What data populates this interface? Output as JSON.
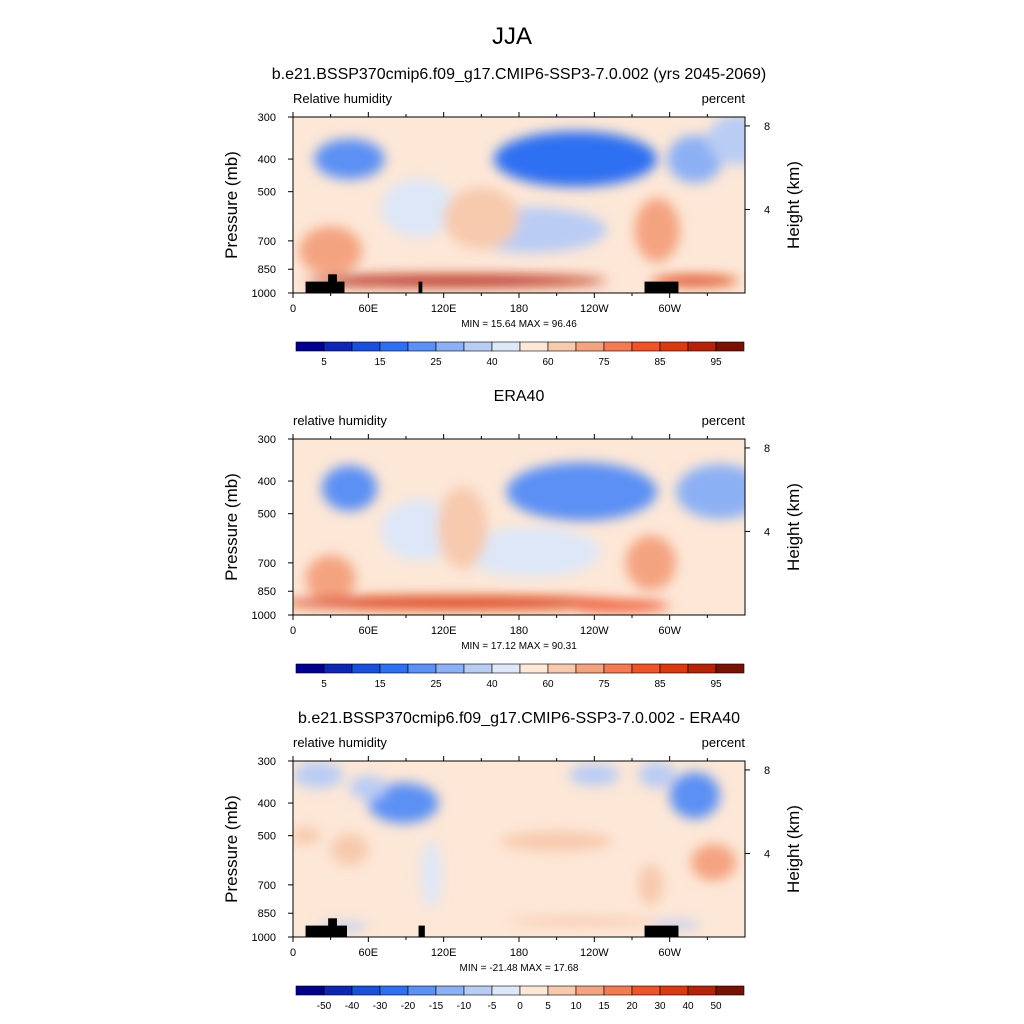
{
  "figure": {
    "title": "JJA",
    "subtitle": "b.e21.BSSP370cmip6.f09_g17.CMIP6-SSP3-7.0.002 (yrs 2045-2069)"
  },
  "chart_data": [
    {
      "type": "heatmap",
      "panel": "model",
      "title": "",
      "left_label": "Relative humidity",
      "right_label": "percent",
      "ylabel": "Pressure (mb)",
      "ylabel_right": "Height (km)",
      "xlabel": "",
      "x_ticks": [
        "0",
        "60E",
        "120E",
        "180",
        "120W",
        "60W"
      ],
      "x_tick_lon": [
        0,
        60,
        120,
        180,
        240,
        300
      ],
      "xlim": [
        0,
        360
      ],
      "y_ticks": [
        300,
        400,
        500,
        700,
        850,
        1000
      ],
      "ylim": [
        1000,
        300
      ],
      "right_ticks": [
        8,
        4
      ],
      "stats": "MIN =  15.64  MAX =  96.46",
      "colorbar": {
        "levels": [
          5,
          10,
          15,
          20,
          25,
          30,
          40,
          50,
          60,
          70,
          75,
          80,
          85,
          90,
          95
        ],
        "labels": [
          "5",
          "15",
          "25",
          "40",
          "60",
          "75",
          "85",
          "95"
        ],
        "colors": [
          "#00008c",
          "#0d26b4",
          "#1a4fdb",
          "#2f70f2",
          "#5b90f4",
          "#8cb0f4",
          "#b9ccf4",
          "#dde7f8",
          "#fde7d7",
          "#f7c9ad",
          "#f4a380",
          "#f27b54",
          "#ee5329",
          "#da3a10",
          "#b4230a",
          "#781204"
        ]
      },
      "features": [
        {
          "lon": 45,
          "p": 400,
          "value": 20,
          "dlon": 28,
          "dp": 110
        },
        {
          "lon": 225,
          "p": 400,
          "value": 18,
          "dlon": 65,
          "dp": 150
        },
        {
          "lon": 320,
          "p": 400,
          "value": 25,
          "dlon": 22,
          "dp": 130
        },
        {
          "lon": 355,
          "p": 350,
          "value": 38,
          "dlon": 25,
          "dp": 150
        },
        {
          "lon": 100,
          "p": 560,
          "value": 45,
          "dlon": 30,
          "dp": 220
        },
        {
          "lon": 190,
          "p": 650,
          "value": 38,
          "dlon": 60,
          "dp": 200
        },
        {
          "lon": 150,
          "p": 600,
          "value": 65,
          "dlon": 30,
          "dp": 250
        },
        {
          "lon": 30,
          "p": 750,
          "value": 72,
          "dlon": 25,
          "dp": 250
        },
        {
          "lon": 290,
          "p": 650,
          "value": 70,
          "dlon": 18,
          "dp": 280
        },
        {
          "lon": 130,
          "p": 920,
          "value": 92,
          "dlon": 120,
          "dp": 70
        },
        {
          "lon": 60,
          "p": 920,
          "value": 90,
          "dlon": 40,
          "dp": 60
        },
        {
          "lon": 320,
          "p": 920,
          "value": 88,
          "dlon": 35,
          "dp": 60
        }
      ],
      "topography": [
        {
          "lon1": 10,
          "lon2": 41,
          "p_top": 925
        },
        {
          "lon1": 28,
          "lon2": 35,
          "p_top": 880
        },
        {
          "lon1": 100,
          "lon2": 103,
          "p_top": 925
        },
        {
          "lon1": 280,
          "lon2": 307,
          "p_top": 925
        }
      ]
    },
    {
      "type": "heatmap",
      "panel": "observations",
      "title": "ERA40",
      "left_label": "relative humidity",
      "right_label": "percent",
      "ylabel": "Pressure (mb)",
      "ylabel_right": "Height (km)",
      "xlabel": "",
      "x_ticks": [
        "0",
        "60E",
        "120E",
        "180",
        "120W",
        "60W"
      ],
      "x_tick_lon": [
        0,
        60,
        120,
        180,
        240,
        300
      ],
      "xlim": [
        0,
        360
      ],
      "y_ticks": [
        300,
        400,
        500,
        700,
        850,
        1000
      ],
      "ylim": [
        1000,
        300
      ],
      "right_ticks": [
        8,
        4
      ],
      "stats": "MIN =  17.12  MAX =  90.31",
      "colorbar": {
        "levels": [
          5,
          10,
          15,
          20,
          25,
          30,
          40,
          50,
          60,
          70,
          75,
          80,
          85,
          90,
          95
        ],
        "labels": [
          "5",
          "15",
          "25",
          "40",
          "60",
          "75",
          "85",
          "95"
        ],
        "colors": [
          "#00008c",
          "#0d26b4",
          "#1a4fdb",
          "#2f70f2",
          "#5b90f4",
          "#8cb0f4",
          "#b9ccf4",
          "#dde7f8",
          "#fde7d7",
          "#f7c9ad",
          "#f4a380",
          "#f27b54",
          "#ee5329",
          "#da3a10",
          "#b4230a",
          "#781204"
        ]
      },
      "features": [
        {
          "lon": 45,
          "p": 420,
          "value": 22,
          "dlon": 22,
          "dp": 130
        },
        {
          "lon": 230,
          "p": 430,
          "value": 20,
          "dlon": 60,
          "dp": 170
        },
        {
          "lon": 340,
          "p": 430,
          "value": 28,
          "dlon": 35,
          "dp": 160
        },
        {
          "lon": 100,
          "p": 560,
          "value": 48,
          "dlon": 30,
          "dp": 230
        },
        {
          "lon": 190,
          "p": 650,
          "value": 42,
          "dlon": 55,
          "dp": 220
        },
        {
          "lon": 135,
          "p": 550,
          "value": 66,
          "dlon": 20,
          "dp": 300
        },
        {
          "lon": 30,
          "p": 780,
          "value": 72,
          "dlon": 20,
          "dp": 250
        },
        {
          "lon": 285,
          "p": 700,
          "value": 70,
          "dlon": 20,
          "dp": 260
        },
        {
          "lon": 130,
          "p": 920,
          "value": 86,
          "dlon": 140,
          "dp": 80
        },
        {
          "lon": 260,
          "p": 940,
          "value": 84,
          "dlon": 40,
          "dp": 70
        }
      ],
      "topography": []
    },
    {
      "type": "heatmap",
      "panel": "difference",
      "title": "b.e21.BSSP370cmip6.f09_g17.CMIP6-SSP3-7.0.002 - ERA40",
      "left_label": "relative humidity",
      "right_label": "percent",
      "ylabel": "Pressure (mb)",
      "ylabel_right": "Height (km)",
      "xlabel": "",
      "x_ticks": [
        "0",
        "60E",
        "120E",
        "180",
        "120W",
        "60W"
      ],
      "x_tick_lon": [
        0,
        60,
        120,
        180,
        240,
        300
      ],
      "xlim": [
        0,
        360
      ],
      "y_ticks": [
        300,
        400,
        500,
        700,
        850,
        1000
      ],
      "ylim": [
        1000,
        300
      ],
      "right_ticks": [
        8,
        4
      ],
      "stats": "MIN = -21.48  MAX =  17.68",
      "colorbar": {
        "levels": [
          -50,
          -40,
          -30,
          -20,
          -15,
          -10,
          -5,
          0,
          5,
          10,
          15,
          20,
          30,
          40,
          50
        ],
        "labels": [
          "-50",
          "-40",
          "-30",
          "-20",
          "-15",
          "-10",
          "-5",
          "0",
          "5",
          "10",
          "15",
          "20",
          "30",
          "40",
          "50"
        ],
        "colors": [
          "#00008c",
          "#0d26b4",
          "#1a4fdb",
          "#2f70f2",
          "#5b90f4",
          "#8cb0f4",
          "#b9ccf4",
          "#dde7f8",
          "#fde7d7",
          "#f7c9ad",
          "#f4a380",
          "#f27b54",
          "#ee5329",
          "#da3a10",
          "#b4230a",
          "#781204"
        ]
      },
      "features": [
        {
          "lon": 88,
          "p": 400,
          "value": -18,
          "dlon": 28,
          "dp": 110
        },
        {
          "lon": 20,
          "p": 330,
          "value": -8,
          "dlon": 20,
          "dp": 60
        },
        {
          "lon": 60,
          "p": 360,
          "value": -6,
          "dlon": 15,
          "dp": 60
        },
        {
          "lon": 320,
          "p": 380,
          "value": -16,
          "dlon": 20,
          "dp": 120
        },
        {
          "lon": 290,
          "p": 330,
          "value": -10,
          "dlon": 15,
          "dp": 60
        },
        {
          "lon": 240,
          "p": 330,
          "value": -8,
          "dlon": 20,
          "dp": 50
        },
        {
          "lon": 10,
          "p": 500,
          "value": 8,
          "dlon": 12,
          "dp": 60
        },
        {
          "lon": 45,
          "p": 550,
          "value": 6,
          "dlon": 15,
          "dp": 120
        },
        {
          "lon": 210,
          "p": 520,
          "value": 9,
          "dlon": 45,
          "dp": 70
        },
        {
          "lon": 335,
          "p": 600,
          "value": 12,
          "dlon": 18,
          "dp": 150
        },
        {
          "lon": 285,
          "p": 700,
          "value": 6,
          "dlon": 10,
          "dp": 200
        },
        {
          "lon": 110,
          "p": 650,
          "value": -5,
          "dlon": 8,
          "dp": 300
        },
        {
          "lon": 230,
          "p": 900,
          "value": 7,
          "dlon": 60,
          "dp": 50
        },
        {
          "lon": 40,
          "p": 930,
          "value": -8,
          "dlon": 20,
          "dp": 40
        },
        {
          "lon": 305,
          "p": 920,
          "value": -8,
          "dlon": 20,
          "dp": 40
        }
      ],
      "topography": [
        {
          "lon1": 10,
          "lon2": 43,
          "p_top": 925
        },
        {
          "lon1": 28,
          "lon2": 35,
          "p_top": 880
        },
        {
          "lon1": 100,
          "lon2": 105,
          "p_top": 925
        },
        {
          "lon1": 280,
          "lon2": 307,
          "p_top": 925
        }
      ]
    }
  ]
}
